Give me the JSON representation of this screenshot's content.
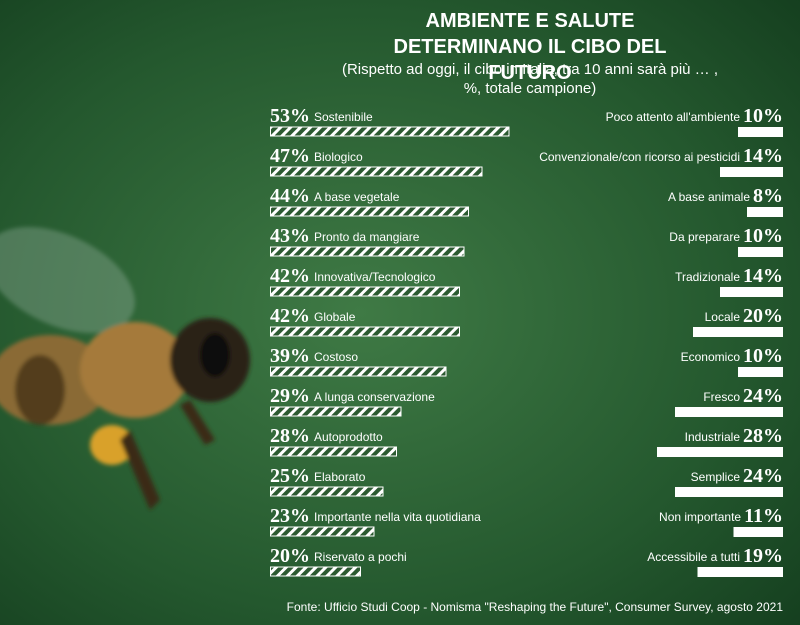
{
  "chart_data": {
    "type": "bar",
    "title": "AMBIENTE E SALUTE DETERMINANO IL CIBO DEL FUTURO",
    "subtitle": "(Rispetto ad oggi, il cibo in Italia, tra 10 anni sarà più … , %, totale campione)",
    "series": [
      {
        "categories": [
          "Sostenibile",
          "Biologico",
          "A base vegetale",
          "Pronto da mangiare",
          "Innovativa/Tecnologico",
          "Globale",
          "Costoso",
          "A lunga conservazione",
          "Autoprodotto",
          "Elaborato",
          "Importante nella vita quotidiana",
          "Riservato a pochi"
        ],
        "values": [
          53,
          47,
          44,
          43,
          42,
          42,
          39,
          29,
          28,
          25,
          23,
          20
        ],
        "value_labels": [
          "53%",
          "47%",
          "44%",
          "43%",
          "42%",
          "42%",
          "39%",
          "29%",
          "28%",
          "25%",
          "23%",
          "20%"
        ]
      },
      {
        "categories": [
          "Poco attento all'ambiente",
          "Convenzionale/con ricorso ai pesticidi",
          "A base animale",
          "Da preparare",
          "Tradizionale",
          "Locale",
          "Economico",
          "Fresco",
          "Industriale",
          "Semplice",
          "Non importante",
          "Accessibile a tutti"
        ],
        "values": [
          10,
          14,
          8,
          10,
          14,
          20,
          10,
          24,
          28,
          24,
          11,
          19
        ],
        "value_labels": [
          "10%",
          "14%",
          "8%",
          "10%",
          "14%",
          "20%",
          "10%",
          "24%",
          "28%",
          "24%",
          "11%",
          "19%"
        ]
      }
    ],
    "source": "Fonte: Ufficio Studi Coop - Nomisma \"Reshaping the Future\", Consumer Survey, agosto 2021"
  }
}
